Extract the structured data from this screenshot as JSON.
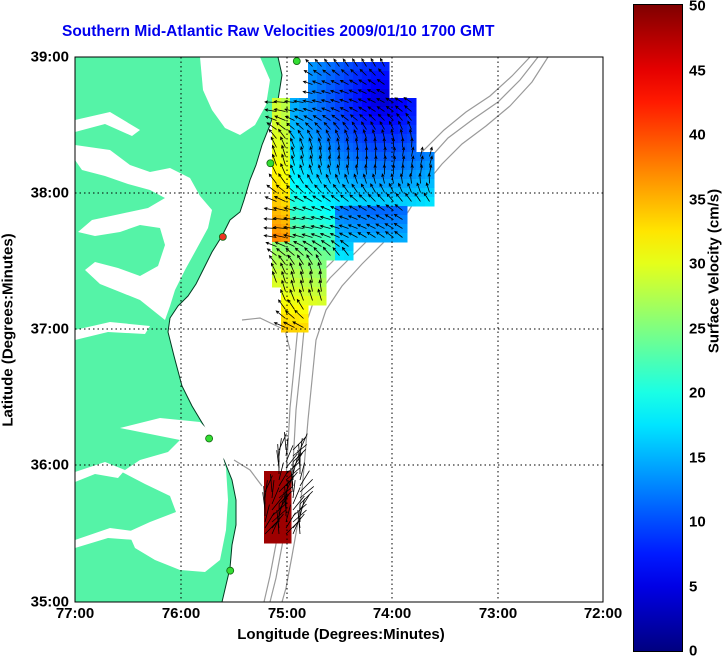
{
  "title": "Southern Mid-Atlantic Raw Velocities 2009/01/10 1700 GMT",
  "colors": {
    "title": "#0000ee",
    "land": "#55f3a7",
    "coastline": "#003a20",
    "bathymetry": "#9a9a9a",
    "arrows": "#000000",
    "station": "#33dd33"
  },
  "axes": {
    "xlabel": "Longitude (Degrees:Minutes)",
    "ylabel": "Latitude (Degrees:Minutes)",
    "xticks": [
      "77:00",
      "76:00",
      "75:00",
      "74:00",
      "73:00",
      "72:00"
    ],
    "yticks": [
      "39:00",
      "38:00",
      "37:00",
      "36:00",
      "35:00"
    ],
    "xlim": [
      -77,
      -72
    ],
    "ylim": [
      35,
      39
    ],
    "grid": "dotted"
  },
  "colorbar": {
    "label": "Surface Velocity (cm/s)",
    "min": 0,
    "max": 50,
    "ticks": [
      "50",
      "45",
      "40",
      "35",
      "30",
      "25",
      "20",
      "15",
      "10",
      "5",
      "0"
    ],
    "colormap": "jet"
  },
  "stations": [
    {
      "lon": -74.9,
      "lat": 38.97,
      "icon": "green-circle-icon"
    },
    {
      "lon": -75.15,
      "lat": 38.22,
      "icon": "green-circle-icon"
    },
    {
      "lon": -75.6,
      "lat": 37.68,
      "icon": "red-circle-icon"
    },
    {
      "lon": -75.73,
      "lat": 36.2,
      "icon": "green-circle-icon"
    },
    {
      "lon": -75.53,
      "lat": 35.23,
      "icon": "green-circle-icon"
    }
  ]
}
